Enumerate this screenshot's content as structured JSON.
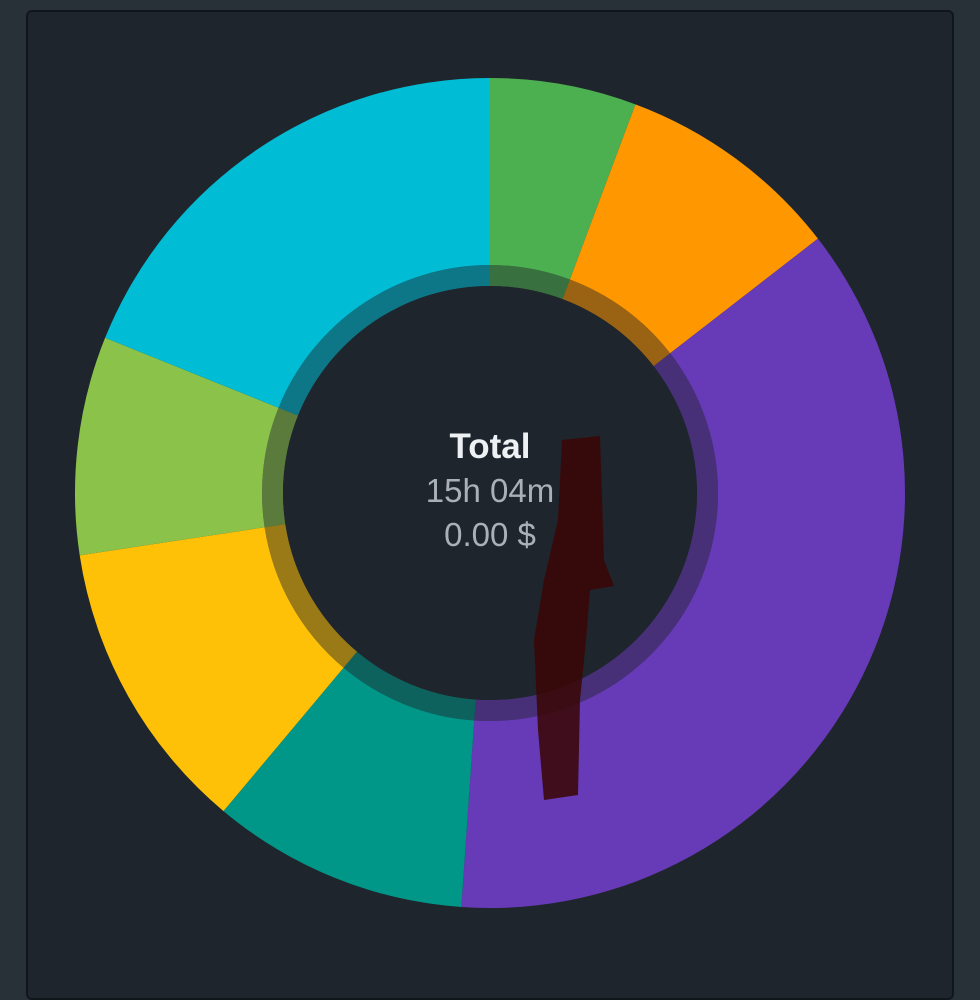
{
  "chart_data": {
    "type": "pie",
    "donut": true,
    "slices": [
      {
        "value": 5.7,
        "color": "#4caf50"
      },
      {
        "value": 8.8,
        "color": "#ff9800"
      },
      {
        "value": 36.6,
        "color": "#673ab7"
      },
      {
        "value": 10.0,
        "color": "#009688"
      },
      {
        "value": 11.5,
        "color": "#ffc107"
      },
      {
        "value": 8.5,
        "color": "#8bc34a"
      },
      {
        "value": 18.9,
        "color": "#00bcd4"
      }
    ],
    "center": {
      "title": "Total",
      "duration": "15h 04m",
      "cost": "0.00 $"
    }
  },
  "colors": {
    "card_background": "#1f252c",
    "page_background": "#283138"
  }
}
